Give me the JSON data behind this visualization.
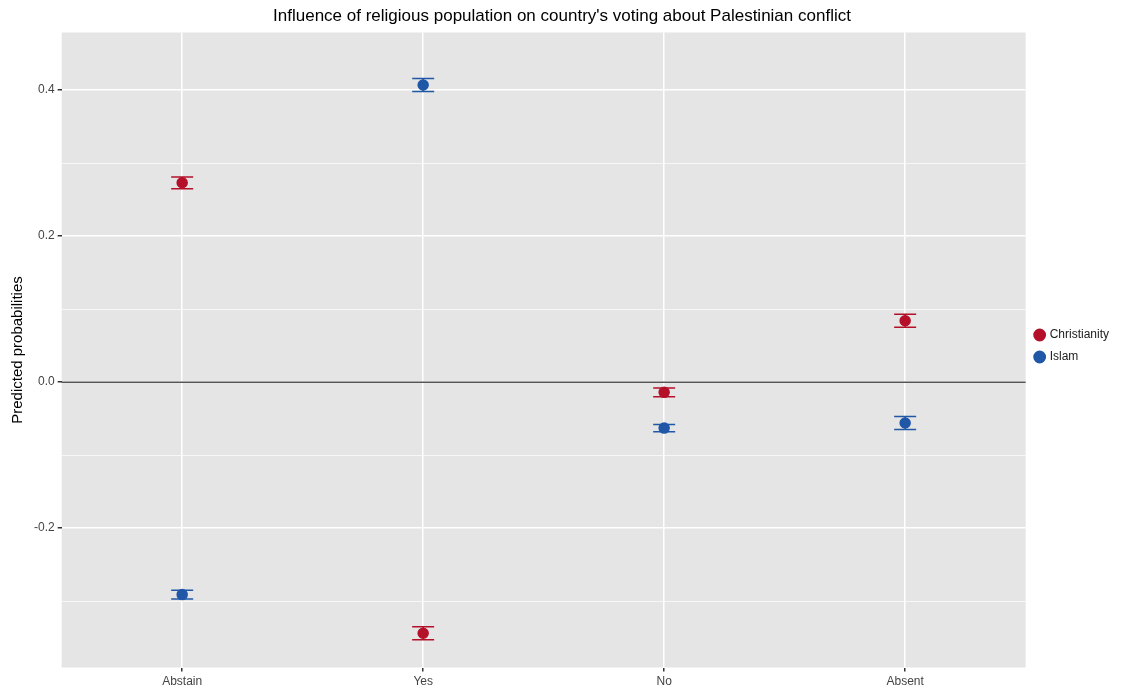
{
  "chart_data": {
    "type": "scatter",
    "title": "Influence of religious population on country's voting about Palestinian conflict",
    "ylabel": "Predicted probabilities",
    "categories": [
      "Abstain",
      "Yes",
      "No",
      "Absent"
    ],
    "series": [
      {
        "name": "Christianity",
        "color": "#b5102a",
        "values": [
          0.273,
          -0.344,
          -0.014,
          0.084
        ],
        "errors": [
          0.008,
          0.009,
          0.006,
          0.009
        ]
      },
      {
        "name": "Islam",
        "color": "#2057a7",
        "values": [
          -0.291,
          0.407,
          -0.063,
          -0.056
        ],
        "errors": [
          0.006,
          0.009,
          0.005,
          0.009
        ]
      }
    ],
    "ylim": [
      -0.391,
      0.479
    ],
    "yticks": [
      {
        "value": -0.3,
        "label": null
      },
      -0.2,
      {
        "value": -0.1,
        "label": null
      },
      {
        "value": 0,
        "label": "0.0"
      },
      {
        "value": 0.1,
        "label": null
      },
      0.2,
      {
        "value": 0.3,
        "label": null
      },
      0.4
    ],
    "ref_lines": [
      {
        "axis": "y",
        "value": 0,
        "color": "#555555"
      }
    ],
    "grid": true,
    "legend": "right",
    "marker": "circle"
  }
}
